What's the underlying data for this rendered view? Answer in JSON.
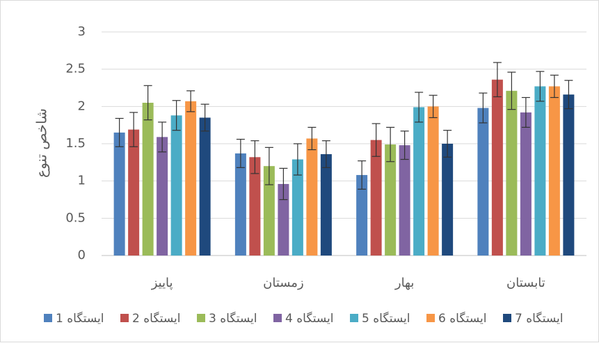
{
  "chart_data": {
    "type": "bar",
    "title": "",
    "xlabel": "",
    "ylabel": "شاخص تنوع",
    "ylim": [
      0,
      3
    ],
    "yticks": [
      "0",
      "0.5",
      "1",
      "1.5",
      "2",
      "2.5",
      "3"
    ],
    "grid": true,
    "legend_position": "bottom",
    "categories": [
      "پاییز",
      "زمستان",
      "بهار",
      "تابستان"
    ],
    "series": [
      {
        "name": "ایستگاه 1",
        "color": "#4F81BD",
        "values": [
          1.65,
          1.37,
          1.08,
          1.98
        ],
        "errors": [
          0.19,
          0.19,
          0.19,
          0.2
        ]
      },
      {
        "name": "ایستگاه 2",
        "color": "#C0504D",
        "values": [
          1.69,
          1.32,
          1.55,
          2.36
        ],
        "errors": [
          0.23,
          0.22,
          0.22,
          0.23
        ]
      },
      {
        "name": "ایستگاه 3",
        "color": "#9BBB59",
        "values": [
          2.05,
          1.2,
          1.49,
          2.21
        ],
        "errors": [
          0.23,
          0.25,
          0.23,
          0.25
        ]
      },
      {
        "name": "ایستگاه 4",
        "color": "#8064A2",
        "values": [
          1.59,
          0.96,
          1.48,
          1.92
        ],
        "errors": [
          0.2,
          0.21,
          0.19,
          0.2
        ]
      },
      {
        "name": "ایستگاه 5",
        "color": "#4BACC6",
        "values": [
          1.88,
          1.29,
          1.99,
          2.27
        ],
        "errors": [
          0.2,
          0.21,
          0.2,
          0.2
        ]
      },
      {
        "name": "ایستگاه 6",
        "color": "#F79646",
        "values": [
          2.07,
          1.57,
          2.0,
          2.27
        ],
        "errors": [
          0.14,
          0.15,
          0.15,
          0.15
        ]
      },
      {
        "name": "ایستگاه 7",
        "color": "#1F497D",
        "values": [
          1.85,
          1.36,
          1.5,
          2.16
        ],
        "errors": [
          0.18,
          0.18,
          0.18,
          0.19
        ]
      }
    ]
  }
}
